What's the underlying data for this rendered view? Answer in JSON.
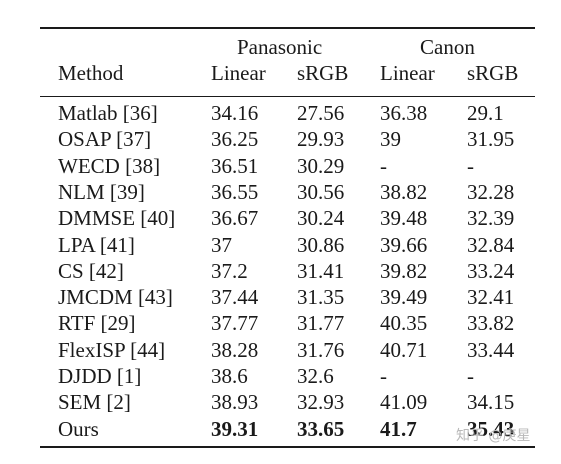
{
  "table": {
    "groups": [
      "Panasonic",
      "Canon"
    ],
    "columns": [
      "Method",
      "Linear",
      "sRGB",
      "Linear",
      "sRGB"
    ],
    "rows": [
      {
        "method": "Matlab [36]",
        "pan_linear": "34.16",
        "pan_srgb": "27.56",
        "can_linear": "36.38",
        "can_srgb": "29.1"
      },
      {
        "method": "OSAP [37]",
        "pan_linear": "36.25",
        "pan_srgb": "29.93",
        "can_linear": "39",
        "can_srgb": "31.95"
      },
      {
        "method": "WECD [38]",
        "pan_linear": "36.51",
        "pan_srgb": "30.29",
        "can_linear": "-",
        "can_srgb": "-"
      },
      {
        "method": "NLM [39]",
        "pan_linear": "36.55",
        "pan_srgb": "30.56",
        "can_linear": "38.82",
        "can_srgb": "32.28"
      },
      {
        "method": "DMMSE [40]",
        "pan_linear": "36.67",
        "pan_srgb": "30.24",
        "can_linear": "39.48",
        "can_srgb": "32.39"
      },
      {
        "method": "LPA [41]",
        "pan_linear": "37",
        "pan_srgb": "30.86",
        "can_linear": "39.66",
        "can_srgb": "32.84"
      },
      {
        "method": "CS [42]",
        "pan_linear": "37.2",
        "pan_srgb": "31.41",
        "can_linear": "39.82",
        "can_srgb": "33.24"
      },
      {
        "method": "JMCDM [43]",
        "pan_linear": "37.44",
        "pan_srgb": "31.35",
        "can_linear": "39.49",
        "can_srgb": "32.41"
      },
      {
        "method": "RTF [29]",
        "pan_linear": "37.77",
        "pan_srgb": "31.77",
        "can_linear": "40.35",
        "can_srgb": "33.82"
      },
      {
        "method": "FlexISP [44]",
        "pan_linear": "38.28",
        "pan_srgb": "31.76",
        "can_linear": "40.71",
        "can_srgb": "33.44"
      },
      {
        "method": "DJDD [1]",
        "pan_linear": "38.6",
        "pan_srgb": "32.6",
        "can_linear": "-",
        "can_srgb": "-"
      },
      {
        "method": "SEM [2]",
        "pan_linear": "38.93",
        "pan_srgb": "32.93",
        "can_linear": "41.09",
        "can_srgb": "34.15"
      },
      {
        "method": "Ours",
        "pan_linear": "39.31",
        "pan_srgb": "33.65",
        "can_linear": "41.7",
        "can_srgb": "35.43",
        "bold": true
      }
    ]
  },
  "watermark": "知乎 @庚星"
}
